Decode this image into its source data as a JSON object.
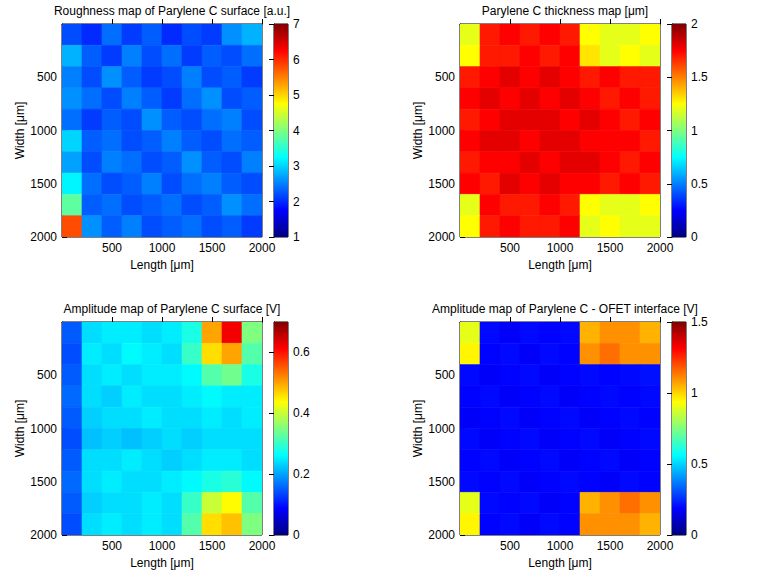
{
  "chart_data": [
    {
      "type": "heatmap",
      "title": "Roughness map of Parylene C surface [a.u.]",
      "x_label": "Length [μm]",
      "y_label": "Width [μm]",
      "xlim": [
        0,
        2000
      ],
      "xticks": [
        500,
        1000,
        1500,
        2000
      ],
      "ylim": [
        0,
        2000
      ],
      "yticks": [
        500,
        1000,
        1500,
        2000
      ],
      "x_edges": [
        0,
        200,
        400,
        600,
        800,
        1000,
        1200,
        1400,
        1600,
        1800,
        2000
      ],
      "y_edges": [
        0,
        200,
        400,
        600,
        800,
        1000,
        1200,
        1400,
        1600,
        1800,
        2000
      ],
      "cells": [
        [
          2.2,
          2.0,
          2.4,
          2.1,
          2.3,
          2.0,
          2.2,
          2.1,
          2.6,
          2.8
        ],
        [
          2.8,
          2.3,
          2.1,
          2.5,
          2.2,
          2.4,
          2.1,
          2.3,
          2.2,
          2.4
        ],
        [
          2.5,
          2.2,
          2.6,
          2.3,
          2.1,
          2.2,
          2.5,
          2.2,
          2.3,
          2.1
        ],
        [
          2.6,
          2.4,
          2.2,
          2.5,
          2.3,
          2.1,
          2.4,
          2.6,
          2.2,
          2.3
        ],
        [
          2.4,
          2.1,
          2.3,
          2.2,
          2.6,
          2.3,
          2.2,
          2.4,
          2.5,
          2.2
        ],
        [
          3.0,
          2.3,
          2.4,
          2.2,
          2.3,
          2.5,
          2.3,
          2.2,
          2.4,
          2.3
        ],
        [
          2.7,
          2.2,
          2.5,
          2.4,
          2.2,
          2.3,
          2.6,
          2.3,
          2.2,
          2.5
        ],
        [
          3.2,
          2.4,
          2.2,
          2.3,
          2.5,
          2.2,
          2.4,
          2.5,
          2.3,
          2.2
        ],
        [
          3.8,
          2.3,
          2.4,
          2.2,
          2.3,
          2.4,
          2.2,
          2.3,
          2.6,
          2.4
        ],
        [
          5.8,
          2.6,
          2.3,
          2.5,
          2.2,
          2.3,
          2.4,
          2.2,
          2.3,
          2.1
        ]
      ],
      "colorbar_range": [
        1,
        7
      ],
      "colorbar_ticks": [
        1,
        2,
        3,
        4,
        5,
        6,
        7
      ]
    },
    {
      "type": "heatmap",
      "title": "Parylene C thickness map [μm]",
      "x_label": "Length [μm]",
      "y_label": "Width [μm]",
      "xlim": [
        0,
        2000
      ],
      "xticks": [
        500,
        1000,
        1500,
        2000
      ],
      "ylim": [
        0,
        2000
      ],
      "yticks": [
        500,
        1000,
        1500,
        2000
      ],
      "x_edges": [
        0,
        200,
        400,
        600,
        800,
        1000,
        1200,
        1400,
        1600,
        1800,
        2000
      ],
      "y_edges": [
        0,
        200,
        400,
        600,
        800,
        1000,
        1200,
        1400,
        1600,
        1800,
        2000
      ],
      "cells": [
        [
          1.2,
          1.7,
          1.75,
          1.7,
          1.75,
          1.7,
          1.25,
          1.2,
          1.2,
          1.25
        ],
        [
          1.25,
          1.7,
          1.7,
          1.75,
          1.7,
          1.75,
          1.3,
          1.2,
          1.25,
          1.2
        ],
        [
          1.7,
          1.75,
          1.8,
          1.75,
          1.8,
          1.75,
          1.7,
          1.75,
          1.7,
          1.7
        ],
        [
          1.75,
          1.8,
          1.75,
          1.8,
          1.75,
          1.8,
          1.75,
          1.7,
          1.75,
          1.7
        ],
        [
          1.7,
          1.75,
          1.8,
          1.8,
          1.8,
          1.75,
          1.8,
          1.75,
          1.7,
          1.75
        ],
        [
          1.75,
          1.8,
          1.8,
          1.75,
          1.8,
          1.8,
          1.75,
          1.75,
          1.75,
          1.7
        ],
        [
          1.7,
          1.75,
          1.75,
          1.8,
          1.75,
          1.8,
          1.8,
          1.75,
          1.7,
          1.75
        ],
        [
          1.75,
          1.7,
          1.8,
          1.75,
          1.8,
          1.75,
          1.75,
          1.7,
          1.75,
          1.7
        ],
        [
          1.2,
          1.75,
          1.7,
          1.7,
          1.75,
          1.7,
          1.25,
          1.2,
          1.2,
          1.25
        ],
        [
          1.25,
          1.7,
          1.75,
          1.7,
          1.7,
          1.75,
          1.2,
          1.25,
          1.2,
          1.2
        ]
      ],
      "colorbar_range": [
        0,
        2
      ],
      "colorbar_ticks": [
        0,
        0.5,
        1,
        1.5,
        2
      ]
    },
    {
      "type": "heatmap",
      "title": "Amplitude map of Parylene C surface [V]",
      "x_label": "Length [μm]",
      "y_label": "Width [μm]",
      "xlim": [
        0,
        2000
      ],
      "xticks": [
        500,
        1000,
        1500,
        2000
      ],
      "ylim": [
        0,
        2000
      ],
      "yticks": [
        500,
        1000,
        1500,
        2000
      ],
      "x_edges": [
        0,
        200,
        400,
        600,
        800,
        1000,
        1200,
        1400,
        1600,
        1800,
        2000
      ],
      "y_edges": [
        0,
        200,
        400,
        600,
        800,
        1000,
        1200,
        1400,
        1600,
        1800,
        2000
      ],
      "cells": [
        [
          0.15,
          0.24,
          0.25,
          0.25,
          0.24,
          0.25,
          0.28,
          0.5,
          0.62,
          0.35
        ],
        [
          0.14,
          0.25,
          0.24,
          0.26,
          0.25,
          0.24,
          0.3,
          0.46,
          0.5,
          0.32
        ],
        [
          0.15,
          0.24,
          0.25,
          0.24,
          0.25,
          0.25,
          0.26,
          0.32,
          0.34,
          0.28
        ],
        [
          0.16,
          0.24,
          0.23,
          0.25,
          0.24,
          0.24,
          0.25,
          0.26,
          0.25,
          0.25
        ],
        [
          0.15,
          0.23,
          0.24,
          0.24,
          0.25,
          0.24,
          0.24,
          0.25,
          0.24,
          0.25
        ],
        [
          0.14,
          0.22,
          0.23,
          0.22,
          0.23,
          0.24,
          0.23,
          0.24,
          0.24,
          0.24
        ],
        [
          0.15,
          0.24,
          0.24,
          0.25,
          0.24,
          0.23,
          0.24,
          0.25,
          0.25,
          0.24
        ],
        [
          0.16,
          0.24,
          0.25,
          0.24,
          0.24,
          0.25,
          0.26,
          0.28,
          0.29,
          0.26
        ],
        [
          0.15,
          0.23,
          0.24,
          0.24,
          0.25,
          0.24,
          0.3,
          0.4,
          0.44,
          0.32
        ],
        [
          0.14,
          0.24,
          0.25,
          0.24,
          0.25,
          0.24,
          0.32,
          0.46,
          0.48,
          0.35
        ]
      ],
      "colorbar_range": [
        0,
        0.7
      ],
      "colorbar_ticks": [
        0,
        0.2,
        0.4,
        0.6
      ]
    },
    {
      "type": "heatmap",
      "title": "Amplitude map of Parylene C - OFET interface [V]",
      "x_label": "Length [μm]",
      "y_label": "Width [μm]",
      "xlim": [
        0,
        2000
      ],
      "xticks": [
        500,
        1000,
        1500,
        2000
      ],
      "ylim": [
        0,
        2000
      ],
      "yticks": [
        500,
        1000,
        1500,
        2000
      ],
      "x_edges": [
        0,
        200,
        400,
        600,
        800,
        1000,
        1200,
        1400,
        1600,
        1800,
        2000
      ],
      "y_edges": [
        0,
        200,
        400,
        600,
        800,
        1000,
        1200,
        1400,
        1600,
        1800,
        2000
      ],
      "cells": [
        [
          0.9,
          0.2,
          0.18,
          0.2,
          0.19,
          0.2,
          1.05,
          1.1,
          1.1,
          1.05
        ],
        [
          0.95,
          0.19,
          0.2,
          0.18,
          0.2,
          0.19,
          1.1,
          1.15,
          1.1,
          1.1
        ],
        [
          0.2,
          0.18,
          0.19,
          0.2,
          0.18,
          0.19,
          0.2,
          0.19,
          0.2,
          0.21
        ],
        [
          0.19,
          0.2,
          0.18,
          0.19,
          0.2,
          0.18,
          0.19,
          0.2,
          0.19,
          0.2
        ],
        [
          0.18,
          0.19,
          0.2,
          0.18,
          0.19,
          0.2,
          0.18,
          0.19,
          0.2,
          0.19
        ],
        [
          0.2,
          0.18,
          0.19,
          0.2,
          0.18,
          0.19,
          0.2,
          0.18,
          0.19,
          0.2
        ],
        [
          0.19,
          0.2,
          0.18,
          0.19,
          0.2,
          0.18,
          0.19,
          0.2,
          0.18,
          0.19
        ],
        [
          0.2,
          0.19,
          0.2,
          0.18,
          0.19,
          0.2,
          0.19,
          0.18,
          0.2,
          0.19
        ],
        [
          0.9,
          0.2,
          0.19,
          0.2,
          0.18,
          0.19,
          1.05,
          1.1,
          1.15,
          1.1
        ],
        [
          0.95,
          0.19,
          0.2,
          0.18,
          0.2,
          0.19,
          1.1,
          1.1,
          1.1,
          1.05
        ]
      ],
      "colorbar_range": [
        0,
        1.5
      ],
      "colorbar_ticks": [
        0,
        0.5,
        1,
        1.5
      ]
    }
  ]
}
